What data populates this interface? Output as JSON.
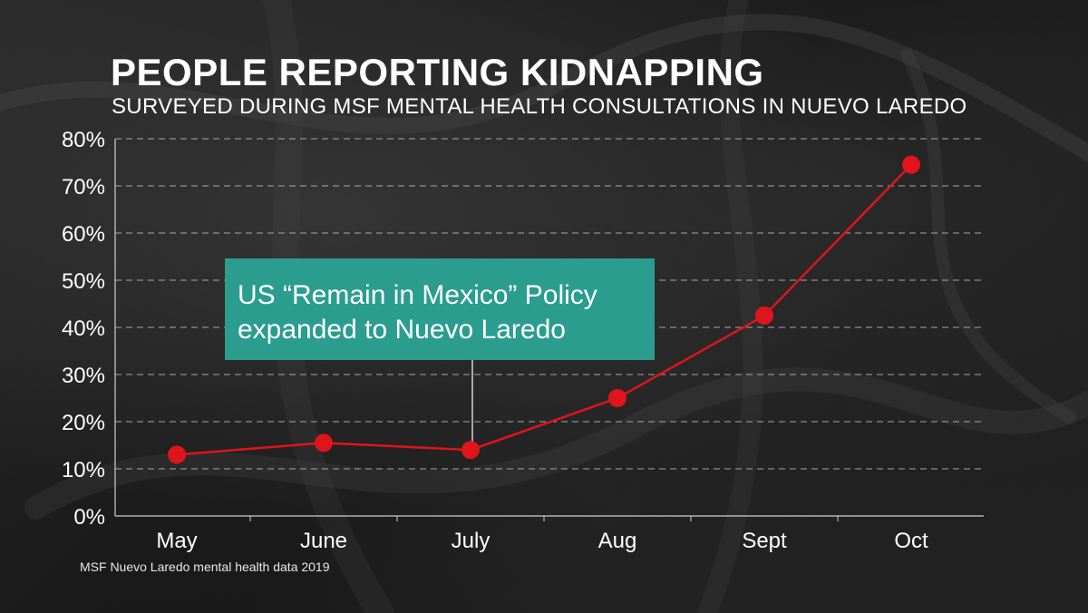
{
  "title": "PEOPLE REPORTING KIDNAPPING",
  "subtitle": "SURVEYED DURING MSF MENTAL HEALTH CONSULTATIONS IN NUEVO LAREDO",
  "source": "MSF Nuevo Laredo mental health data 2019",
  "colors": {
    "line": "#e0141b",
    "marker": "#e0141b",
    "annotation_bg": "#2a9d8f",
    "grid": "#bdbdbd",
    "text": "#ffffff"
  },
  "annotation": {
    "line1": "US “Remain in Mexico” Policy",
    "line2": "expanded to Nuevo Laredo",
    "category": "July"
  },
  "chart_data": {
    "type": "line",
    "title": "PEOPLE REPORTING KIDNAPPING",
    "subtitle": "SURVEYED DURING MSF MENTAL HEALTH CONSULTATIONS IN NUEVO LAREDO",
    "xlabel": "",
    "ylabel": "",
    "categories": [
      "May",
      "June",
      "July",
      "Aug",
      "Sept",
      "Oct"
    ],
    "series": [
      {
        "name": "People reporting kidnapping",
        "values": [
          13,
          15.5,
          14,
          25,
          42.5,
          74.5
        ]
      }
    ],
    "ylim": [
      0,
      80
    ],
    "yticks": [
      0,
      10,
      20,
      30,
      40,
      50,
      60,
      70,
      80
    ],
    "ytick_labels": [
      "0%",
      "10%",
      "20%",
      "30%",
      "40%",
      "50%",
      "60%",
      "70%",
      "80%"
    ],
    "grid": true,
    "grid_style": "dashed",
    "legend": "none"
  }
}
